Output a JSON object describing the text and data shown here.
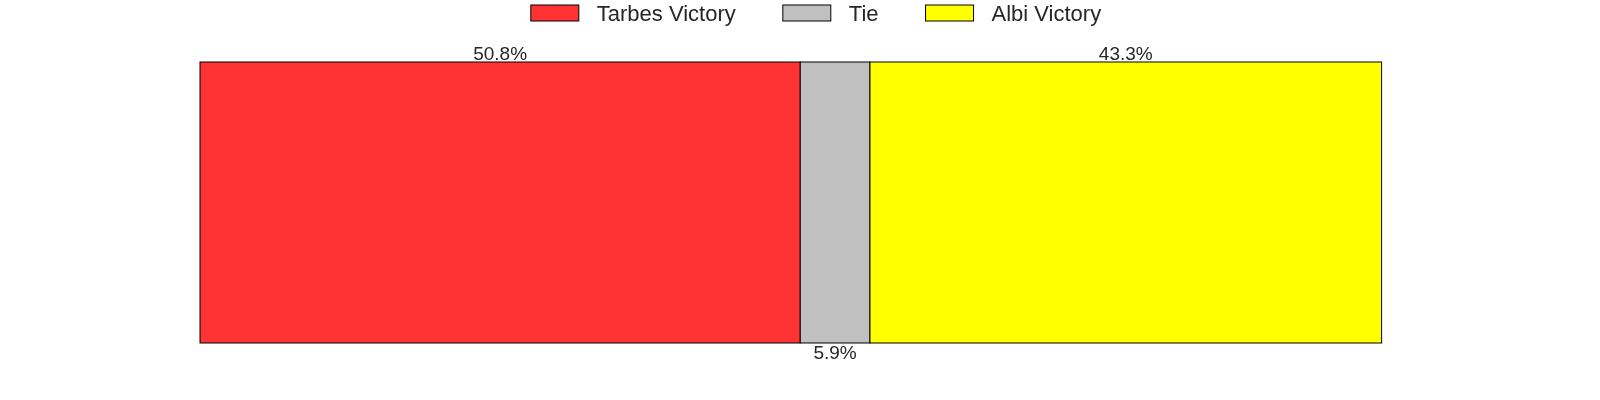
{
  "chart_data": {
    "type": "bar",
    "orientation": "horizontal",
    "stacked": true,
    "categories": [
      null
    ],
    "series": [
      {
        "name": "Tarbes Victory",
        "color": "#ff3333",
        "values": [
          50.8
        ],
        "value_labels": [
          "50.8%"
        ]
      },
      {
        "name": "Tie",
        "color": "#c0c0c0",
        "values": [
          5.9
        ],
        "value_labels": [
          "5.9%"
        ]
      },
      {
        "name": "Albi Victory",
        "color": "#ffff00",
        "values": [
          43.3
        ],
        "value_labels": [
          "43.3%"
        ]
      }
    ],
    "legend": "top",
    "tick_labels": false
  }
}
